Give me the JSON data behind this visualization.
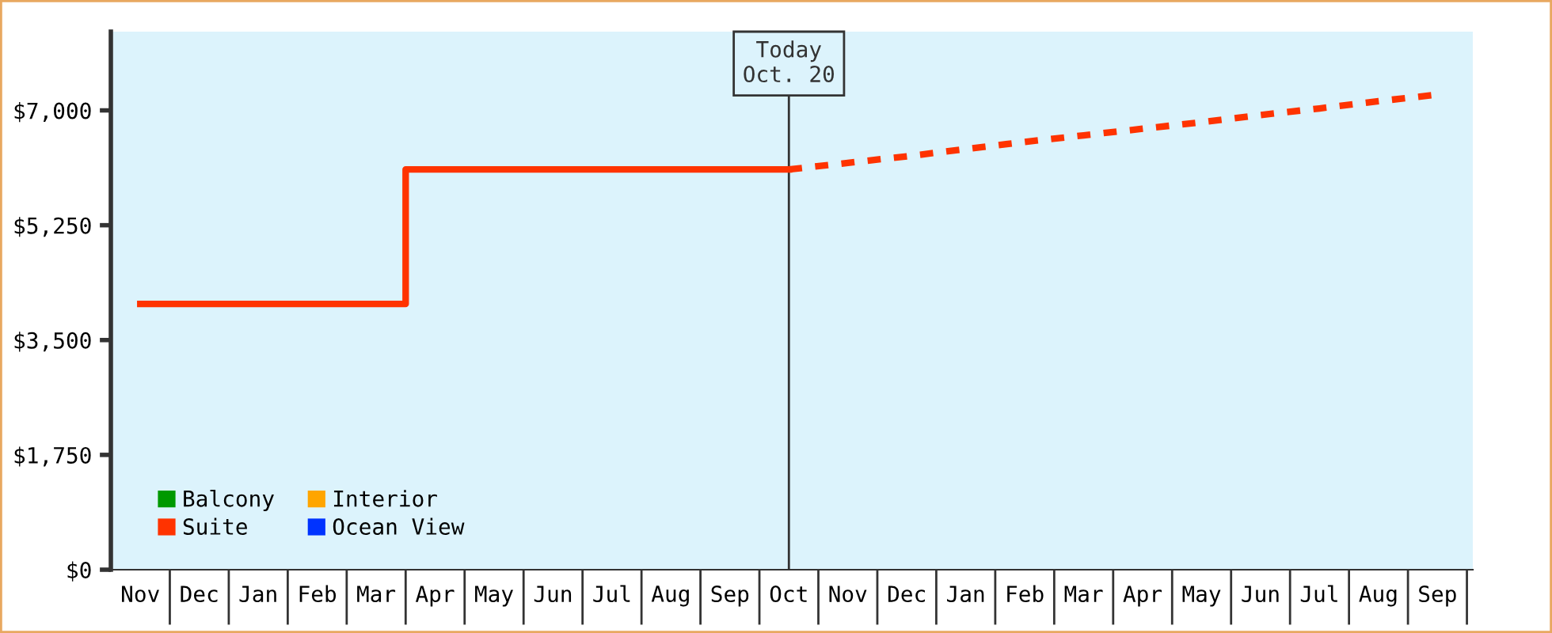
{
  "chart_data": {
    "type": "line",
    "ylim": [
      0,
      8200
    ],
    "yticks": [
      {
        "value": 0,
        "label": "$0"
      },
      {
        "value": 1750,
        "label": "$1,750"
      },
      {
        "value": 3500,
        "label": "$3,500"
      },
      {
        "value": 5250,
        "label": "$5,250"
      },
      {
        "value": 7000,
        "label": "$7,000"
      }
    ],
    "categories": [
      "Nov",
      "Dec",
      "Jan",
      "Feb",
      "Mar",
      "Apr",
      "May",
      "Jun",
      "Jul",
      "Aug",
      "Sep",
      "Oct",
      "Nov",
      "Dec",
      "Jan",
      "Feb",
      "Mar",
      "Apr",
      "May",
      "Jun",
      "Jul",
      "Aug",
      "Sep"
    ],
    "series": [
      {
        "name": "Balcony",
        "color": "#009900",
        "values": [
          null,
          null,
          null,
          null,
          null,
          null,
          null,
          null,
          null,
          null,
          null,
          null,
          null,
          null,
          null,
          null,
          null,
          null,
          null,
          null,
          null,
          null,
          null
        ]
      },
      {
        "name": "Suite",
        "type": "step",
        "color": "#ff3300",
        "values": [
          4050,
          4050,
          4050,
          4050,
          4050,
          6100,
          6100,
          6100,
          6100,
          6100,
          6100,
          6100,
          null,
          null,
          null,
          null,
          null,
          null,
          null,
          null,
          null,
          null,
          null
        ],
        "line_style": "solid"
      },
      {
        "name": "Interior",
        "color": "#ffa500",
        "values": [
          null,
          null,
          null,
          null,
          null,
          null,
          null,
          null,
          null,
          null,
          null,
          null,
          null,
          null,
          null,
          null,
          null,
          null,
          null,
          null,
          null,
          null,
          null
        ]
      },
      {
        "name": "Ocean View",
        "color": "#0033ff",
        "values": [
          null,
          null,
          null,
          null,
          null,
          null,
          null,
          null,
          null,
          null,
          null,
          null,
          null,
          null,
          null,
          null,
          null,
          null,
          null,
          null,
          null,
          null,
          null
        ]
      },
      {
        "color": "#ff3300",
        "values": [
          null,
          null,
          null,
          null,
          null,
          null,
          null,
          null,
          null,
          null,
          null,
          6100,
          6200,
          6300,
          6410,
          6520,
          6620,
          6720,
          6820,
          6930,
          7030,
          7140,
          7240
        ],
        "line_style": "dashed"
      }
    ],
    "ref_lines": [
      {
        "axis": "x",
        "value": "Oct",
        "label": "Today\nOct. 20",
        "color": "#333333"
      }
    ],
    "legend": "bottom left",
    "grid": false
  }
}
